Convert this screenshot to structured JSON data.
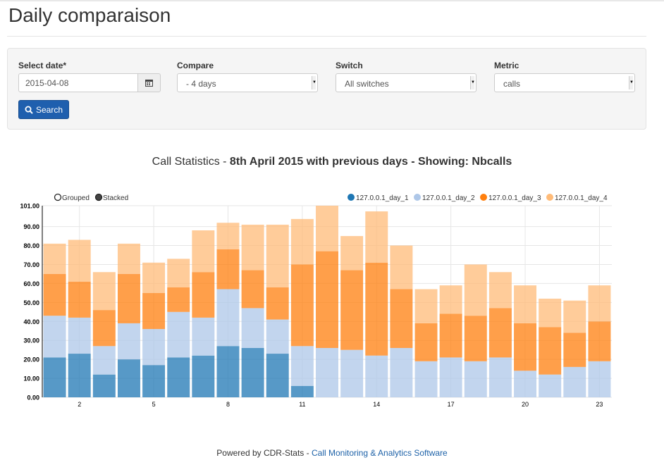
{
  "page": {
    "title": "Daily comparaison"
  },
  "form": {
    "date_label": "Select date*",
    "date_value": "2015-04-08",
    "compare_label": "Compare",
    "compare_value": "- 4 days",
    "switch_label": "Switch",
    "switch_value": "All switches",
    "metric_label": "Metric",
    "metric_value": "calls",
    "search_label": "Search"
  },
  "chart_title": {
    "prefix": "Call Statistics - ",
    "bold": "8th April 2015 with previous days - Showing: Nbcalls"
  },
  "controls": {
    "grouped": "Grouped",
    "stacked": "Stacked",
    "selected": "stacked"
  },
  "footer": {
    "text": "Powered by CDR-Stats - ",
    "link": "Call Monitoring & Analytics Software"
  },
  "chart_data": {
    "type": "bar",
    "stacked": true,
    "categories": [
      1,
      2,
      3,
      4,
      5,
      6,
      7,
      8,
      9,
      10,
      11,
      12,
      13,
      14,
      15,
      16,
      17,
      18,
      19,
      20,
      21,
      22,
      23
    ],
    "x_tick_labels": [
      "2",
      "5",
      "8",
      "11",
      "14",
      "17",
      "20",
      "23"
    ],
    "y_ticks": [
      "0.00",
      "10.00",
      "20.00",
      "30.00",
      "40.00",
      "50.00",
      "60.00",
      "70.00",
      "80.00",
      "90.00",
      "101.00"
    ],
    "ylim": [
      0,
      101
    ],
    "grid": true,
    "legend_position": "top-right",
    "series": [
      {
        "name": "127.0.0.1_day_1",
        "color": "#1f77b4",
        "values": [
          21,
          23,
          12,
          20,
          17,
          21,
          22,
          27,
          26,
          23,
          6,
          0,
          0,
          0,
          0,
          0,
          0,
          0,
          0,
          0,
          0,
          0,
          0
        ]
      },
      {
        "name": "127.0.0.1_day_2",
        "color": "#aec7e8",
        "values": [
          22,
          19,
          15,
          19,
          19,
          24,
          20,
          30,
          21,
          18,
          21,
          26,
          25,
          22,
          26,
          19,
          21,
          19,
          21,
          14,
          12,
          16,
          19
        ]
      },
      {
        "name": "127.0.0.1_day_3",
        "color": "#ff7f0e",
        "values": [
          22,
          19,
          19,
          26,
          19,
          13,
          24,
          21,
          20,
          17,
          43,
          51,
          42,
          49,
          31,
          20,
          23,
          24,
          26,
          25,
          25,
          18,
          21
        ]
      },
      {
        "name": "127.0.0.1_day_4",
        "color": "#ffbb78",
        "values": [
          16,
          22,
          20,
          16,
          16,
          15,
          22,
          14,
          24,
          33,
          24,
          24,
          18,
          27,
          23,
          18,
          15,
          27,
          19,
          20,
          15,
          17,
          19
        ]
      }
    ]
  }
}
